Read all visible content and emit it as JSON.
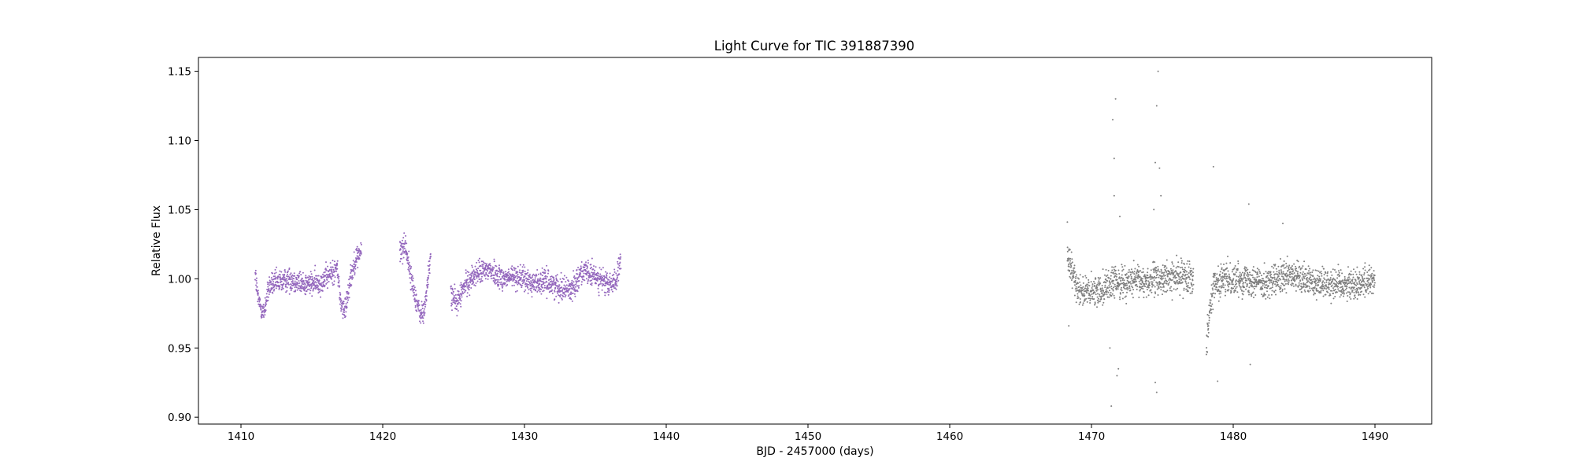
{
  "chart_data": {
    "type": "scatter",
    "title": "Light Curve for TIC 391887390",
    "xlabel": "BJD - 2457000 (days)",
    "ylabel": "Relative Flux",
    "xlim": [
      1407,
      1494
    ],
    "ylim": [
      0.895,
      1.16
    ],
    "xticks": [
      1410,
      1420,
      1430,
      1440,
      1450,
      1460,
      1470,
      1480,
      1490
    ],
    "yticks": [
      0.9,
      0.95,
      1.0,
      1.05,
      1.1,
      1.15
    ],
    "ytick_labels": [
      "0.90",
      "0.95",
      "1.00",
      "1.05",
      "1.10",
      "1.15"
    ],
    "grid": false,
    "series": [
      {
        "color": "#9467bd",
        "x_range": [
          1411.0,
          1436.8
        ],
        "gaps": [
          [
            1418.5,
            1421.2
          ],
          [
            1423.4,
            1424.8
          ]
        ],
        "trend": [
          [
            1411.0,
            1.005
          ],
          [
            1411.2,
            0.985
          ],
          [
            1411.6,
            0.975
          ],
          [
            1412.0,
            0.995
          ],
          [
            1412.8,
            0.998
          ],
          [
            1413.5,
            1.0
          ],
          [
            1414.5,
            0.996
          ],
          [
            1415.5,
            0.997
          ],
          [
            1416.3,
            1.003
          ],
          [
            1416.8,
            1.008
          ],
          [
            1417.0,
            0.985
          ],
          [
            1417.3,
            0.975
          ],
          [
            1417.7,
            1.0
          ],
          [
            1418.1,
            1.015
          ],
          [
            1418.5,
            1.02
          ],
          [
            1421.3,
            1.02
          ],
          [
            1421.6,
            1.025
          ],
          [
            1422.0,
            1.0
          ],
          [
            1422.6,
            0.975
          ],
          [
            1422.9,
            0.975
          ],
          [
            1423.2,
            1.0
          ],
          [
            1423.4,
            1.018
          ],
          [
            1424.8,
            0.99
          ],
          [
            1425.2,
            0.982
          ],
          [
            1425.8,
            0.995
          ],
          [
            1426.5,
            1.003
          ],
          [
            1427.5,
            1.007
          ],
          [
            1428.5,
            1.0
          ],
          [
            1429.5,
            1.002
          ],
          [
            1430.5,
            0.997
          ],
          [
            1431.5,
            0.998
          ],
          [
            1432.5,
            0.994
          ],
          [
            1433.3,
            0.992
          ],
          [
            1434.0,
            1.005
          ],
          [
            1435.0,
            1.002
          ],
          [
            1436.0,
            0.995
          ],
          [
            1436.5,
            1.0
          ],
          [
            1436.8,
            1.012
          ]
        ],
        "scatter": 0.006
      },
      {
        "color": "#7f7f7f",
        "x_range": [
          1468.3,
          1490.0
        ],
        "gaps": [
          [
            1477.2,
            1478.1
          ]
        ],
        "trend": [
          [
            1468.3,
            1.015
          ],
          [
            1468.6,
            1.005
          ],
          [
            1469.0,
            0.995
          ],
          [
            1469.5,
            0.99
          ],
          [
            1470.2,
            0.99
          ],
          [
            1471.0,
            0.995
          ],
          [
            1472.0,
            0.998
          ],
          [
            1473.5,
            0.998
          ],
          [
            1475.0,
            1.0
          ],
          [
            1476.5,
            1.002
          ],
          [
            1477.2,
            1.002
          ],
          [
            1478.1,
            0.95
          ],
          [
            1478.3,
            0.975
          ],
          [
            1478.6,
            0.995
          ],
          [
            1479.5,
            1.0
          ],
          [
            1481.0,
            1.0
          ],
          [
            1482.5,
            0.997
          ],
          [
            1484.0,
            1.002
          ],
          [
            1485.5,
            0.998
          ],
          [
            1487.0,
            0.997
          ],
          [
            1488.5,
            0.996
          ],
          [
            1490.0,
            1.0
          ]
        ],
        "scatter": 0.008,
        "outliers": [
          [
            1471.5,
            1.115
          ],
          [
            1471.7,
            1.13
          ],
          [
            1471.6,
            1.087
          ],
          [
            1471.4,
            0.908
          ],
          [
            1471.9,
            0.935
          ],
          [
            1471.8,
            0.93
          ],
          [
            1474.7,
            1.15
          ],
          [
            1474.6,
            1.125
          ],
          [
            1474.5,
            1.084
          ],
          [
            1474.8,
            1.08
          ],
          [
            1474.6,
            0.918
          ],
          [
            1474.5,
            0.925
          ],
          [
            1478.6,
            1.081
          ],
          [
            1478.9,
            0.926
          ],
          [
            1481.2,
            0.938
          ],
          [
            1481.1,
            1.054
          ],
          [
            1483.5,
            1.04
          ],
          [
            1468.4,
            0.966
          ],
          [
            1468.3,
            1.041
          ],
          [
            1474.9,
            1.06
          ],
          [
            1471.3,
            0.95
          ],
          [
            1471.6,
            1.06
          ],
          [
            1472.0,
            1.045
          ],
          [
            1474.4,
            1.05
          ]
        ]
      }
    ]
  }
}
